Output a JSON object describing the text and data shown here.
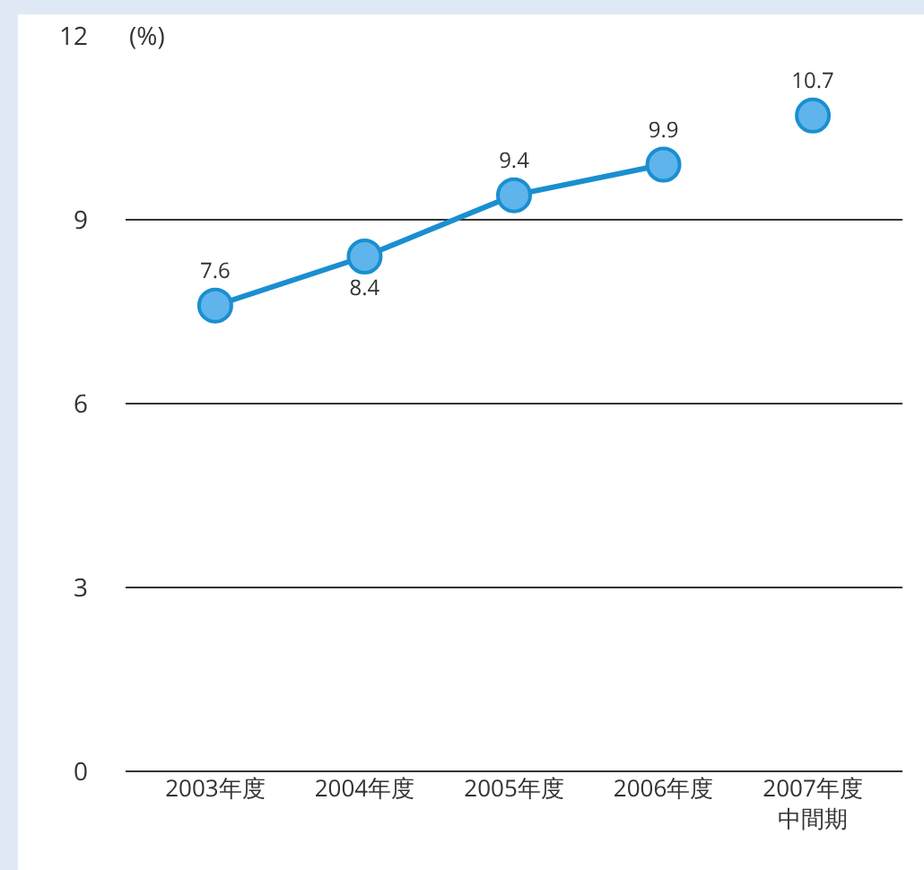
{
  "chart_data": {
    "type": "line",
    "ylabel": "(%)",
    "categories": [
      "2003年度",
      "2004年度",
      "2005年度",
      "2006年度",
      "2007年度中間期"
    ],
    "series": [
      {
        "color": "#1a8fd0",
        "values": [
          7.6,
          8.4,
          9.4,
          9.9,
          null
        ]
      },
      {
        "color": "#1a8fd0",
        "values": [
          null,
          null,
          null,
          null,
          10.7
        ]
      }
    ],
    "ylim": [
      0,
      12
    ],
    "yticks": [
      0,
      3,
      6,
      9,
      12
    ],
    "grid": "y",
    "marker": "circle",
    "line_style": "solid",
    "data_labels": true,
    "legend": false
  }
}
